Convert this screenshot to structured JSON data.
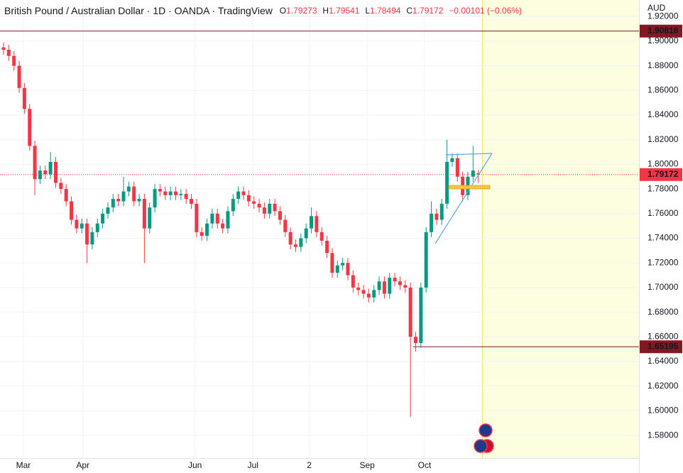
{
  "chart_data": {
    "type": "candlestick",
    "title": "British Pound / Australian Dollar · 1D · OANDA · TradingView",
    "ohlc_labels": [
      "O",
      "H",
      "L",
      "C"
    ],
    "change": "−0.00101 (−0.06%)",
    "unit": "AUD",
    "up_color": "#089981",
    "down_color": "#f23645",
    "grid": true,
    "open": [
      1.895,
      1.893,
      1.888,
      1.88,
      1.862,
      1.845,
      1.815,
      1.788,
      1.795,
      1.792,
      1.802,
      1.785,
      1.78,
      1.77,
      1.755,
      1.748,
      1.752,
      1.735,
      1.745,
      1.752,
      1.76,
      1.765,
      1.772,
      1.77,
      1.778,
      1.782,
      1.77,
      1.772,
      1.748,
      1.765,
      1.78,
      1.778,
      1.775,
      1.778,
      1.775,
      1.776,
      1.772,
      1.768,
      1.745,
      1.742,
      1.752,
      1.76,
      1.752,
      1.748,
      1.762,
      1.772,
      1.778,
      1.775,
      1.77,
      1.768,
      1.765,
      1.76,
      1.768,
      1.762,
      1.755,
      1.745,
      1.735,
      1.733,
      1.74,
      1.748,
      1.758,
      1.745,
      1.738,
      1.728,
      1.712,
      1.718,
      1.72,
      1.71,
      1.7,
      1.698,
      1.695,
      1.692,
      1.698,
      1.705,
      1.695,
      1.708,
      1.705,
      1.702,
      1.7,
      1.66,
      1.655,
      1.7,
      1.745,
      1.76,
      1.755,
      1.768,
      1.802,
      1.805,
      1.79,
      1.775,
      1.79,
      1.79273
    ],
    "high": [
      1.899,
      1.897,
      1.892,
      1.884,
      1.866,
      1.849,
      1.819,
      1.799,
      1.799,
      1.81,
      1.806,
      1.789,
      1.784,
      1.774,
      1.759,
      1.756,
      1.756,
      1.749,
      1.756,
      1.764,
      1.769,
      1.776,
      1.776,
      1.79,
      1.786,
      1.786,
      1.776,
      1.776,
      1.769,
      1.784,
      1.784,
      1.782,
      1.782,
      1.782,
      1.78,
      1.78,
      1.776,
      1.772,
      1.749,
      1.756,
      1.764,
      1.764,
      1.756,
      1.766,
      1.776,
      1.782,
      1.782,
      1.779,
      1.774,
      1.772,
      1.769,
      1.772,
      1.772,
      1.766,
      1.759,
      1.749,
      1.739,
      1.744,
      1.752,
      1.765,
      1.762,
      1.749,
      1.742,
      1.732,
      1.722,
      1.724,
      1.724,
      1.714,
      1.704,
      1.702,
      1.699,
      1.702,
      1.709,
      1.709,
      1.712,
      1.712,
      1.709,
      1.706,
      1.704,
      1.664,
      1.704,
      1.749,
      1.77,
      1.764,
      1.772,
      1.82,
      1.809,
      1.809,
      1.794,
      1.794,
      1.815,
      1.79541
    ],
    "low": [
      1.889,
      1.884,
      1.876,
      1.858,
      1.841,
      1.811,
      1.775,
      1.784,
      1.788,
      1.788,
      1.781,
      1.776,
      1.766,
      1.751,
      1.744,
      1.744,
      1.72,
      1.731,
      1.741,
      1.748,
      1.756,
      1.761,
      1.766,
      1.766,
      1.774,
      1.766,
      1.766,
      1.72,
      1.744,
      1.761,
      1.774,
      1.771,
      1.771,
      1.771,
      1.771,
      1.768,
      1.764,
      1.741,
      1.738,
      1.738,
      1.748,
      1.748,
      1.744,
      1.744,
      1.758,
      1.768,
      1.771,
      1.766,
      1.764,
      1.761,
      1.756,
      1.756,
      1.758,
      1.751,
      1.741,
      1.731,
      1.729,
      1.729,
      1.736,
      1.744,
      1.741,
      1.734,
      1.724,
      1.708,
      1.708,
      1.714,
      1.706,
      1.696,
      1.694,
      1.691,
      1.688,
      1.688,
      1.694,
      1.691,
      1.691,
      1.701,
      1.698,
      1.696,
      1.595,
      1.648,
      1.651,
      1.696,
      1.741,
      1.751,
      1.751,
      1.764,
      1.798,
      1.786,
      1.77,
      1.771,
      1.786,
      1.78494
    ],
    "close": [
      1.893,
      1.888,
      1.88,
      1.862,
      1.845,
      1.815,
      1.788,
      1.795,
      1.792,
      1.802,
      1.785,
      1.78,
      1.77,
      1.755,
      1.748,
      1.752,
      1.735,
      1.745,
      1.752,
      1.76,
      1.765,
      1.772,
      1.77,
      1.778,
      1.782,
      1.77,
      1.772,
      1.748,
      1.765,
      1.78,
      1.778,
      1.775,
      1.778,
      1.775,
      1.776,
      1.772,
      1.768,
      1.745,
      1.742,
      1.752,
      1.76,
      1.752,
      1.748,
      1.762,
      1.772,
      1.778,
      1.775,
      1.77,
      1.768,
      1.765,
      1.76,
      1.768,
      1.762,
      1.755,
      1.745,
      1.735,
      1.733,
      1.74,
      1.748,
      1.758,
      1.745,
      1.738,
      1.728,
      1.712,
      1.718,
      1.72,
      1.71,
      1.7,
      1.698,
      1.695,
      1.692,
      1.698,
      1.705,
      1.695,
      1.708,
      1.705,
      1.702,
      1.7,
      1.66,
      1.655,
      1.7,
      1.745,
      1.76,
      1.755,
      1.768,
      1.802,
      1.805,
      1.79,
      1.775,
      1.79,
      1.795,
      1.79172
    ],
    "ylim": [
      1.5616,
      1.9334
    ],
    "yticks": [
      {
        "value": 1.58,
        "label": "1.58000"
      },
      {
        "value": 1.6,
        "label": "1.60000"
      },
      {
        "value": 1.62,
        "label": "1.62000"
      },
      {
        "value": 1.64,
        "label": "1.64000"
      },
      {
        "value": 1.66,
        "label": "1.66000"
      },
      {
        "value": 1.68,
        "label": "1.68000"
      },
      {
        "value": 1.7,
        "label": "1.70000"
      },
      {
        "value": 1.72,
        "label": "1.72000"
      },
      {
        "value": 1.74,
        "label": "1.74000"
      },
      {
        "value": 1.76,
        "label": "1.76000"
      },
      {
        "value": 1.78,
        "label": "1.78000"
      },
      {
        "value": 1.8,
        "label": "1.80000"
      },
      {
        "value": 1.82,
        "label": "1.82000"
      },
      {
        "value": 1.84,
        "label": "1.84000"
      },
      {
        "value": 1.86,
        "label": "1.86000"
      },
      {
        "value": 1.88,
        "label": "1.88000"
      },
      {
        "value": 1.9,
        "label": "1.90000"
      },
      {
        "value": 1.92,
        "label": "1.92000"
      }
    ],
    "xlim": [
      -0.68,
      121.8
    ],
    "xticks": [
      {
        "value": 3.8,
        "label": "Mar"
      },
      {
        "value": 15.2,
        "label": "Apr"
      },
      {
        "value": 36.7,
        "label": "Jun"
      },
      {
        "value": 47.8,
        "label": "Jul"
      },
      {
        "value": 58.6,
        "label": "2"
      },
      {
        "value": 69.7,
        "label": "Sep"
      },
      {
        "value": 80.7,
        "label": "Oct"
      }
    ],
    "price_lines": [
      {
        "value": 1.90818,
        "color": "#801922"
      },
      {
        "value": 1.65195,
        "color": "#801922"
      }
    ]
  }
}
